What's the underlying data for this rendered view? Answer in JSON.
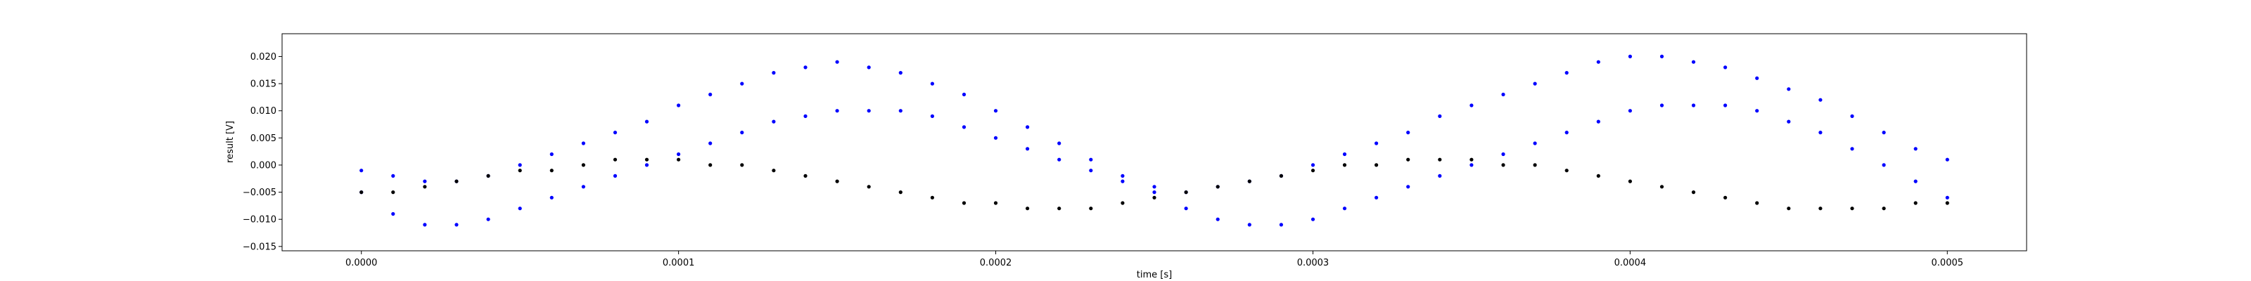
{
  "chart_data": {
    "type": "scatter",
    "title": "",
    "xlabel": "time [s]",
    "ylabel": "result [V]",
    "xlim": [
      -2.5e-05,
      0.000525
    ],
    "ylim": [
      -0.0158,
      0.0242
    ],
    "grid": false,
    "x_ticks": [
      {
        "value": 0.0,
        "label": "0.0000"
      },
      {
        "value": 0.0001,
        "label": "0.0001"
      },
      {
        "value": 0.0002,
        "label": "0.0002"
      },
      {
        "value": 0.0003,
        "label": "0.0003"
      },
      {
        "value": 0.0004,
        "label": "0.0004"
      },
      {
        "value": 0.0005,
        "label": "0.0005"
      }
    ],
    "y_ticks": [
      {
        "value": -0.015,
        "label": "−0.015"
      },
      {
        "value": -0.01,
        "label": "−0.010"
      },
      {
        "value": -0.005,
        "label": "−0.005"
      },
      {
        "value": 0.0,
        "label": "0.000"
      },
      {
        "value": 0.005,
        "label": "0.005"
      },
      {
        "value": 0.01,
        "label": "0.010"
      },
      {
        "value": 0.015,
        "label": "0.015"
      },
      {
        "value": 0.02,
        "label": "0.020"
      }
    ],
    "series": [
      {
        "color": "#0000ff",
        "marker": "dot",
        "x": [
          0.0,
          1e-05,
          2e-05,
          3e-05,
          4e-05,
          5e-05,
          6e-05,
          7e-05,
          8e-05,
          9e-05,
          0.0001,
          0.00011,
          0.00012,
          0.00013,
          0.00014,
          0.00015,
          0.00016,
          0.00017,
          0.00018,
          0.00019,
          0.0002,
          0.00021,
          0.00022,
          0.00023,
          0.00024,
          0.00025,
          0.00026,
          0.00027,
          0.00028,
          0.00029,
          0.0003,
          0.00031,
          0.00032,
          0.00033,
          0.00034,
          0.00035,
          0.00036,
          0.00037,
          0.00038,
          0.00039,
          0.0004,
          0.00041,
          0.00042,
          0.00043,
          0.00044,
          0.00045,
          0.00046,
          0.00047,
          0.00048,
          0.00049,
          0.0005
        ],
        "y": [
          -0.001,
          -0.002,
          -0.003,
          -0.003,
          -0.002,
          0.0,
          0.002,
          0.004,
          0.006,
          0.008,
          0.011,
          0.013,
          0.015,
          0.017,
          0.018,
          0.019,
          0.018,
          0.017,
          0.015,
          0.013,
          0.01,
          0.007,
          0.004,
          0.001,
          -0.002,
          -0.004,
          -0.005,
          -0.004,
          -0.003,
          -0.002,
          0.0,
          0.002,
          0.004,
          0.006,
          0.009,
          0.011,
          0.013,
          0.015,
          0.017,
          0.019,
          0.02,
          0.02,
          0.019,
          0.018,
          0.016,
          0.014,
          0.012,
          0.009,
          0.006,
          0.003,
          0.001
        ]
      },
      {
        "color": "#0000ff",
        "marker": "dot",
        "x": [
          0.0,
          1e-05,
          2e-05,
          3e-05,
          4e-05,
          5e-05,
          6e-05,
          7e-05,
          8e-05,
          9e-05,
          0.0001,
          0.00011,
          0.00012,
          0.00013,
          0.00014,
          0.00015,
          0.00016,
          0.00017,
          0.00018,
          0.00019,
          0.0002,
          0.00021,
          0.00022,
          0.00023,
          0.00024,
          0.00025,
          0.00026,
          0.00027,
          0.00028,
          0.00029,
          0.0003,
          0.00031,
          0.00032,
          0.00033,
          0.00034,
          0.00035,
          0.00036,
          0.00037,
          0.00038,
          0.00039,
          0.0004,
          0.00041,
          0.00042,
          0.00043,
          0.00044,
          0.00045,
          0.00046,
          0.00047,
          0.00048,
          0.00049,
          0.0005
        ],
        "y": [
          -0.005,
          -0.009,
          -0.011,
          -0.011,
          -0.01,
          -0.008,
          -0.006,
          -0.004,
          -0.002,
          0.0,
          0.002,
          0.004,
          0.006,
          0.008,
          0.009,
          0.01,
          0.01,
          0.01,
          0.009,
          0.007,
          0.005,
          0.003,
          0.001,
          -0.001,
          -0.003,
          -0.005,
          -0.008,
          -0.01,
          -0.011,
          -0.011,
          -0.01,
          -0.008,
          -0.006,
          -0.004,
          -0.002,
          0.0,
          0.002,
          0.004,
          0.006,
          0.008,
          0.01,
          0.011,
          0.011,
          0.011,
          0.01,
          0.008,
          0.006,
          0.003,
          0.0,
          -0.003,
          -0.006
        ]
      },
      {
        "color": "#000000",
        "marker": "dot",
        "x": [
          0.0,
          1e-05,
          2e-05,
          3e-05,
          4e-05,
          5e-05,
          6e-05,
          7e-05,
          8e-05,
          9e-05,
          0.0001,
          0.00011,
          0.00012,
          0.00013,
          0.00014,
          0.00015,
          0.00016,
          0.00017,
          0.00018,
          0.00019,
          0.0002,
          0.00021,
          0.00022,
          0.00023,
          0.00024,
          0.00025,
          0.00026,
          0.00027,
          0.00028,
          0.00029,
          0.0003,
          0.00031,
          0.00032,
          0.00033,
          0.00034,
          0.00035,
          0.00036,
          0.00037,
          0.00038,
          0.00039,
          0.0004,
          0.00041,
          0.00042,
          0.00043,
          0.00044,
          0.00045,
          0.00046,
          0.00047,
          0.00048,
          0.00049,
          0.0005
        ],
        "y": [
          -0.005,
          -0.005,
          -0.004,
          -0.003,
          -0.002,
          -0.001,
          -0.001,
          0.0,
          0.001,
          0.001,
          0.001,
          0.0,
          0.0,
          -0.001,
          -0.002,
          -0.003,
          -0.004,
          -0.005,
          -0.006,
          -0.007,
          -0.007,
          -0.008,
          -0.008,
          -0.008,
          -0.007,
          -0.006,
          -0.005,
          -0.004,
          -0.003,
          -0.002,
          -0.001,
          0.0,
          0.0,
          0.001,
          0.001,
          0.001,
          0.0,
          0.0,
          -0.001,
          -0.002,
          -0.003,
          -0.004,
          -0.005,
          -0.006,
          -0.007,
          -0.008,
          -0.008,
          -0.008,
          -0.008,
          -0.007,
          -0.007
        ]
      }
    ]
  }
}
